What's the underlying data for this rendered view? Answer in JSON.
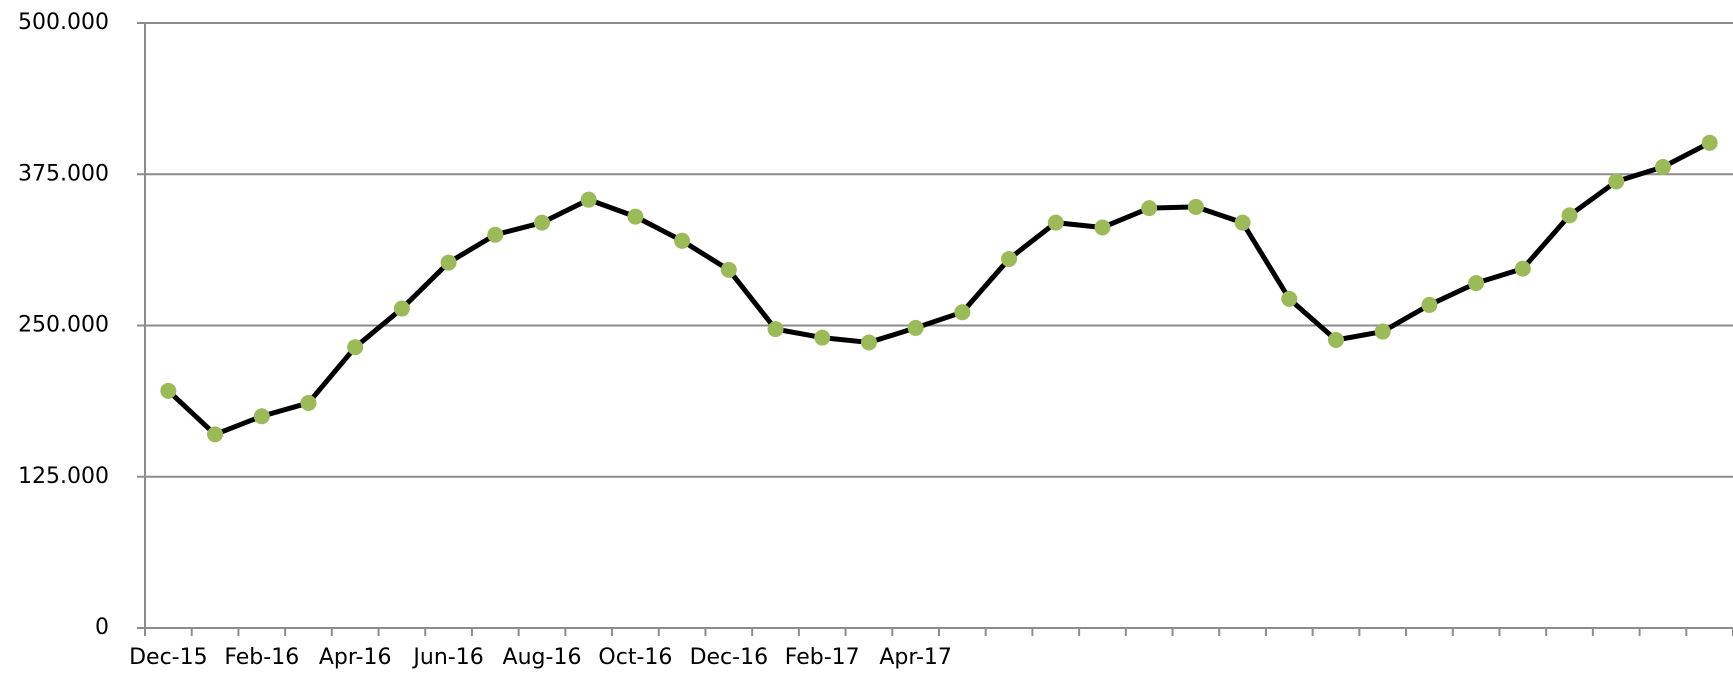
{
  "chart_data": {
    "type": "line",
    "categories": [
      "Dec-15",
      "Feb-16",
      "Apr-16",
      "Jun-16",
      "Aug-16",
      "Oct-16",
      "Dec-16",
      "Feb-17",
      "Apr-17",
      null,
      null,
      null,
      null,
      null,
      null,
      null,
      null
    ],
    "x": [
      "Dec-15",
      null,
      "Feb-16",
      null,
      "Apr-16",
      null,
      "Jun-16",
      null,
      "Aug-16",
      null,
      "Oct-16",
      null,
      "Dec-16",
      null,
      "Feb-17",
      null,
      "Apr-17",
      null,
      null,
      null,
      null,
      null,
      null,
      null,
      null,
      null,
      null,
      null,
      null,
      null,
      null,
      null,
      null,
      null
    ],
    "series": [
      {
        "color": "#9bbb59",
        "line_color": "#000000",
        "values": [
          196000,
          160000,
          175000,
          186000,
          232000,
          264000,
          302000,
          325000,
          335000,
          354000,
          340000,
          320000,
          296000,
          247000,
          240000,
          236000,
          248000,
          261000,
          305000,
          335000,
          331000,
          347000,
          348000,
          335000,
          272000,
          238000,
          245000,
          267000,
          285000,
          297000,
          341000,
          369000,
          381000,
          401000
        ]
      }
    ],
    "ylim": [
      0,
      500000
    ],
    "yticks": [
      0,
      {
        "value": 125000,
        "label": "125.000"
      },
      {
        "value": 250000,
        "label": "250.000"
      },
      {
        "value": 375000,
        "label": "375.000"
      },
      {
        "value": 500000,
        "label": "500.000"
      }
    ],
    "grid": true
  }
}
